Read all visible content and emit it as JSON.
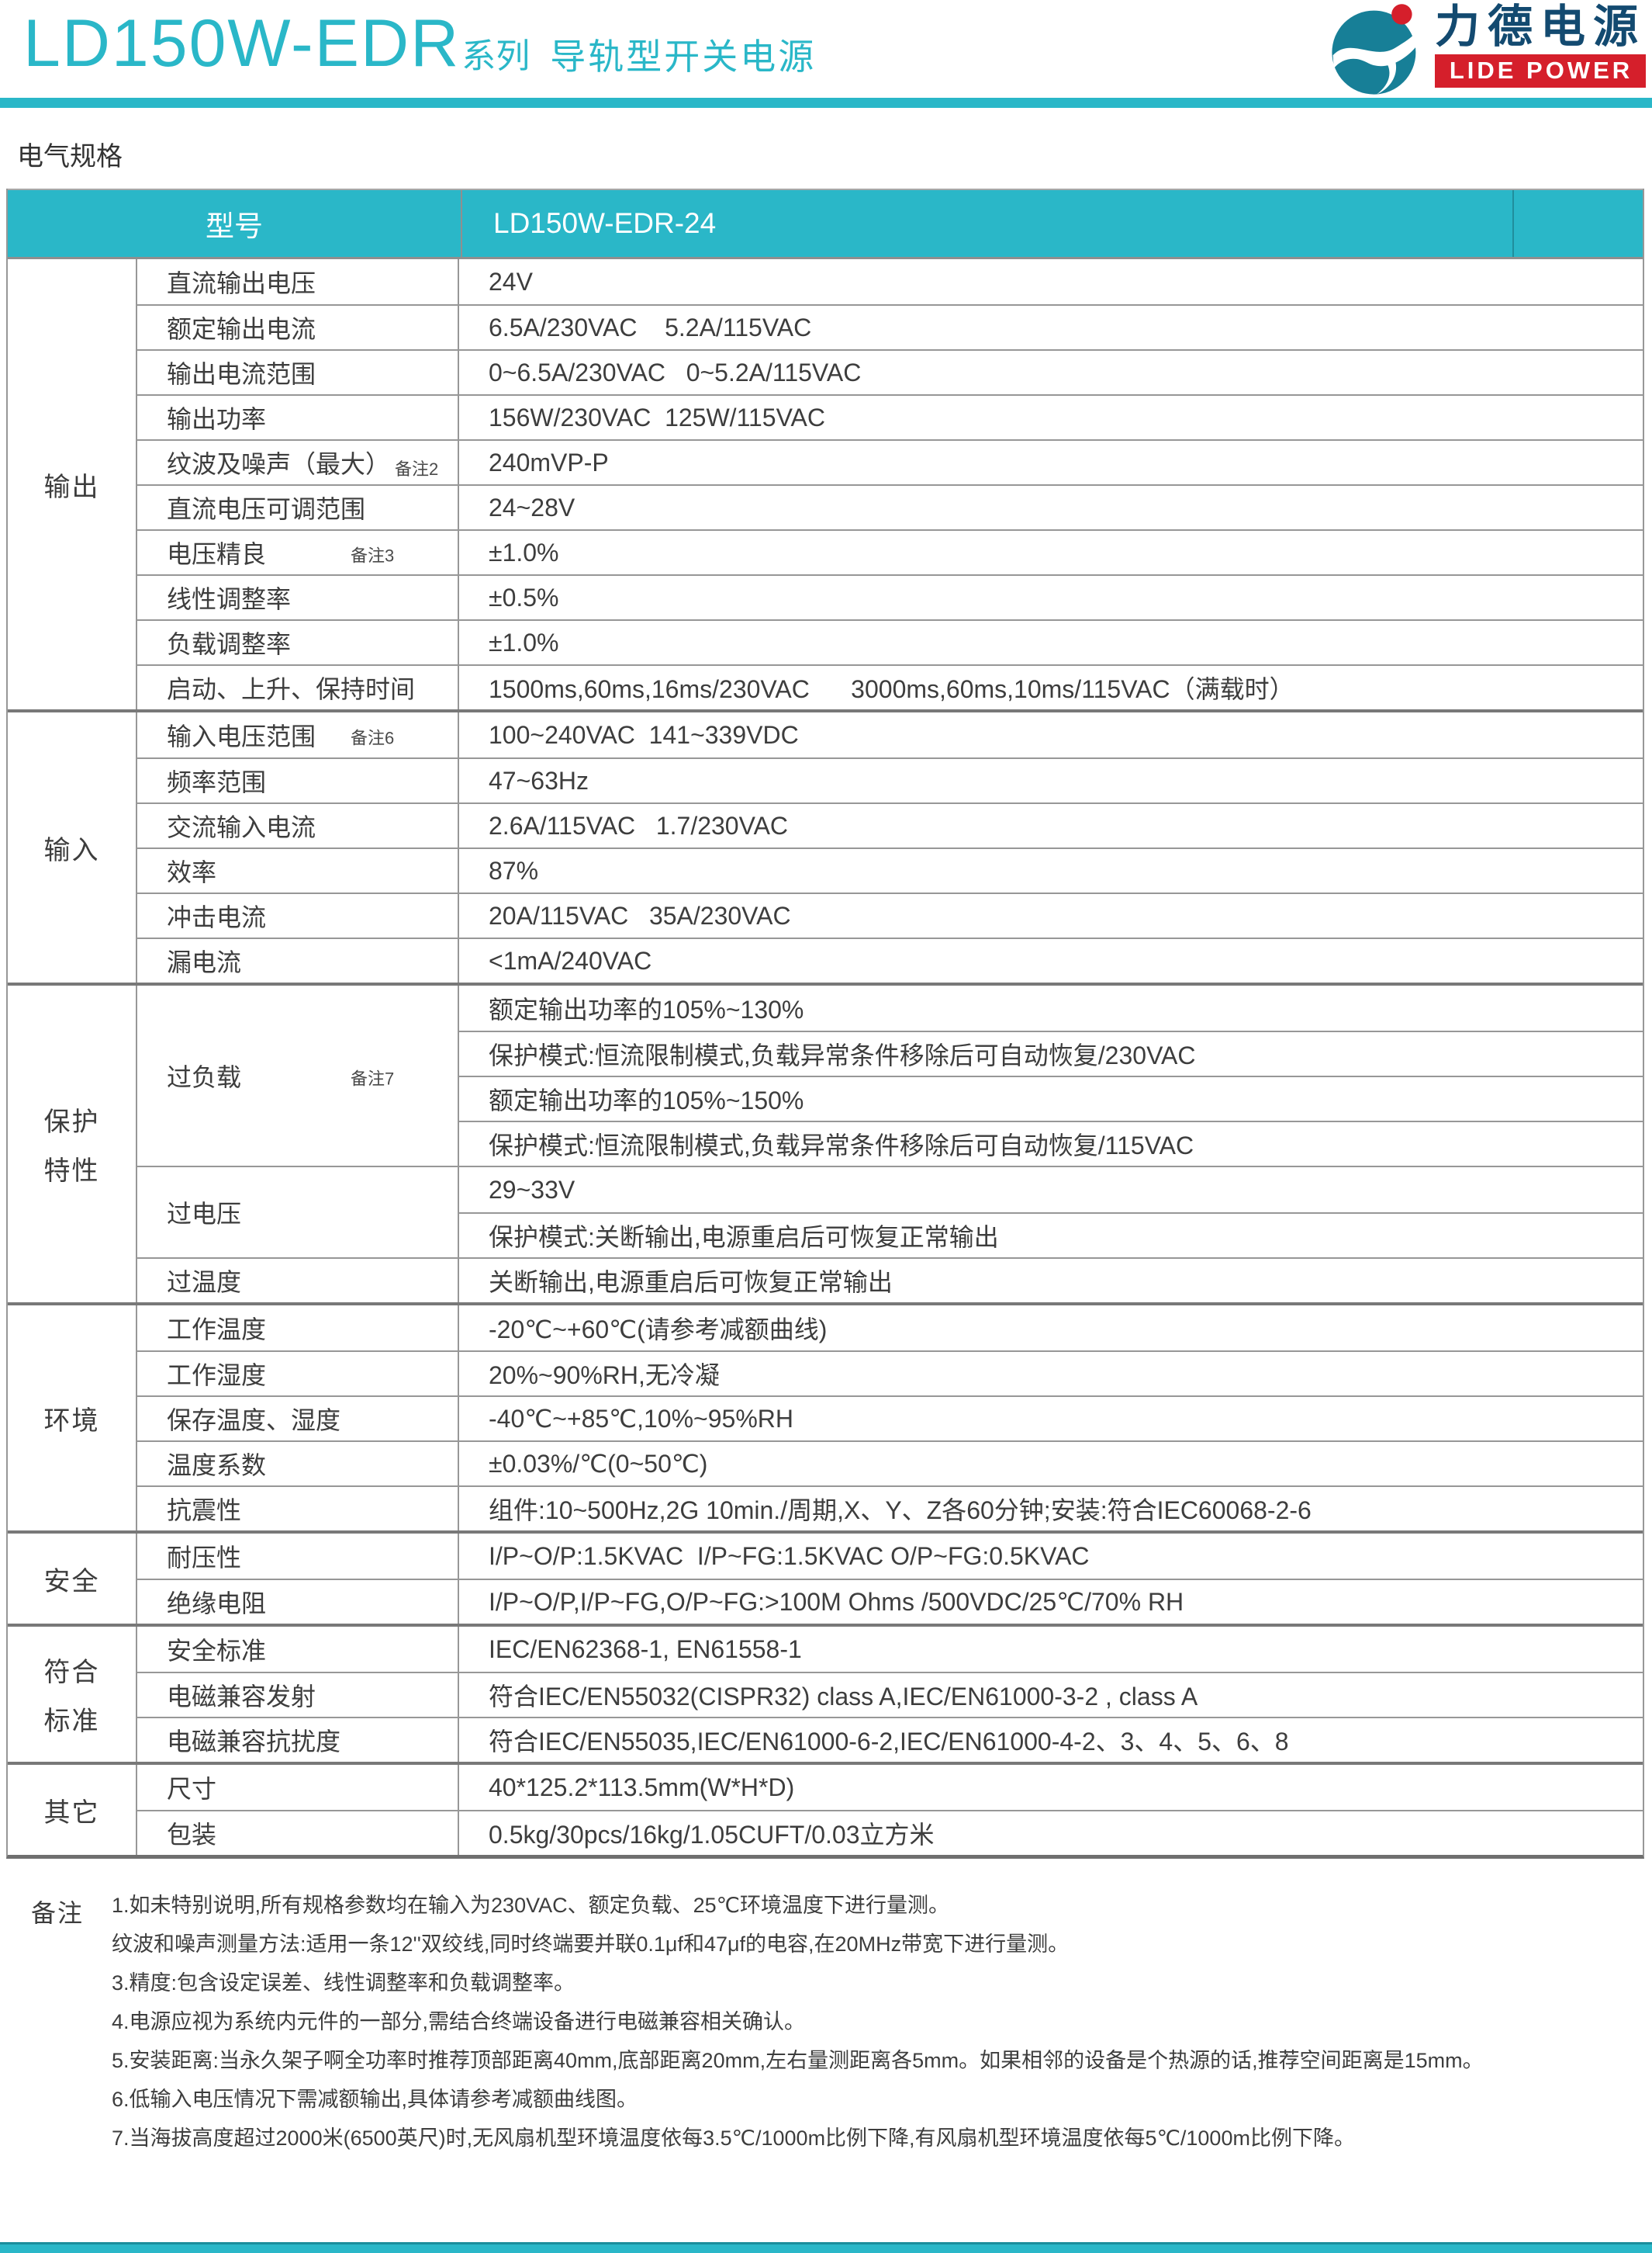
{
  "colors": {
    "accent_cyan": "#2ab7c8",
    "logo_teal": "#177f97",
    "logo_red": "#d51f2b",
    "logo_navy": "#134a70",
    "text": "#3d3d3d"
  },
  "header": {
    "series": "LD150W-EDR",
    "series_suffix": "系列",
    "subtitle": "导轨型开关电源",
    "logo_cn": "力德电源",
    "logo_en": "LIDE POWER"
  },
  "section_title": "电气规格",
  "table": {
    "header": {
      "col1": "型号",
      "col2": "LD150W-EDR-24"
    },
    "groups": [
      {
        "name": [
          "输出"
        ],
        "rows": [
          {
            "label": "直流输出电压",
            "value": "24V"
          },
          {
            "label": "额定输出电流",
            "value": "6.5A/230VAC    5.2A/115VAC"
          },
          {
            "label": "输出电流范围",
            "value": "0~6.5A/230VAC   0~5.2A/115VAC"
          },
          {
            "label": "输出功率",
            "value": "156W/230VAC  125W/115VAC"
          },
          {
            "label": "纹波及噪声（最大）",
            "note": "备注2",
            "note_inline": true,
            "value": "240mVP-P"
          },
          {
            "label": "直流电压可调范围",
            "value": "24~28V"
          },
          {
            "label": "电压精良",
            "note": "备注3",
            "value": "±1.0%"
          },
          {
            "label": "线性调整率",
            "value": "±0.5%"
          },
          {
            "label": "负载调整率",
            "value": "±1.0%"
          },
          {
            "label": "启动、上升、保持时间",
            "value": "1500ms,60ms,16ms/230VAC      3000ms,60ms,10ms/115VAC（满载时）"
          }
        ]
      },
      {
        "name": [
          "输入"
        ],
        "rows": [
          {
            "label": "输入电压范围",
            "note": "备注6",
            "value": "100~240VAC  141~339VDC"
          },
          {
            "label": "频率范围",
            "value": "47~63Hz"
          },
          {
            "label": "交流输入电流",
            "value": "2.6A/115VAC   1.7/230VAC"
          },
          {
            "label": "效率",
            "value": "87%"
          },
          {
            "label": "冲击电流",
            "value": "20A/115VAC   35A/230VAC"
          },
          {
            "label": "漏电流",
            "value": "<1mA/240VAC"
          }
        ]
      },
      {
        "name": [
          "保护",
          "特性"
        ],
        "rows": [
          {
            "label": "过负载",
            "note": "备注7",
            "values": [
              "额定输出功率的105%~130%",
              "保护模式:恒流限制模式,负载异常条件移除后可自动恢复/230VAC",
              "额定输出功率的105%~150%",
              "保护模式:恒流限制模式,负载异常条件移除后可自动恢复/115VAC"
            ]
          },
          {
            "label": "过电压",
            "values": [
              "29~33V",
              "保护模式:关断输出,电源重启后可恢复正常输出"
            ]
          },
          {
            "label": "过温度",
            "value": "关断输出,电源重启后可恢复正常输出"
          }
        ]
      },
      {
        "name": [
          "环境"
        ],
        "rows": [
          {
            "label": "工作温度",
            "value": "-20℃~+60℃(请参考减额曲线)"
          },
          {
            "label": "工作湿度",
            "value": "20%~90%RH,无冷凝"
          },
          {
            "label": "保存温度、湿度",
            "value": "-40℃~+85℃,10%~95%RH"
          },
          {
            "label": "温度系数",
            "value": "±0.03%/℃(0~50℃)"
          },
          {
            "label": "抗震性",
            "value": "组件:10~500Hz,2G 10min./周期,X、Y、Z各60分钟;安装:符合IEC60068-2-6"
          }
        ]
      },
      {
        "name": [
          "安全"
        ],
        "rows": [
          {
            "label": "耐压性",
            "value": "I/P~O/P:1.5KVAC  I/P~FG:1.5KVAC O/P~FG:0.5KVAC"
          },
          {
            "label": "绝缘电阻",
            "value": "I/P~O/P,I/P~FG,O/P~FG:>100M Ohms /500VDC/25℃/70% RH"
          }
        ]
      },
      {
        "name": [
          "符合",
          "标准"
        ],
        "rows": [
          {
            "label": "安全标准",
            "value": "IEC/EN62368-1, EN61558-1"
          },
          {
            "label": "电磁兼容发射",
            "value": "符合IEC/EN55032(CISPR32) class A,IEC/EN61000-3-2 , class A"
          },
          {
            "label": "电磁兼容抗扰度",
            "value": "符合IEC/EN55035,IEC/EN61000-6-2,IEC/EN61000-4-2、3、4、5、6、8"
          }
        ]
      },
      {
        "name": [
          "其它"
        ],
        "rows": [
          {
            "label": "尺寸",
            "value": "40*125.2*113.5mm(W*H*D)"
          },
          {
            "label": "包装",
            "value": "0.5kg/30pcs/16kg/1.05CUFT/0.03立方米"
          }
        ]
      }
    ]
  },
  "notes": {
    "label": "备注",
    "items": [
      "1.如未特别说明,所有规格参数均在输入为230VAC、额定负载、25℃环境温度下进行量测。",
      "纹波和噪声测量方法:适用一条12''双绞线,同时终端要并联0.1μf和47μf的电容,在20MHz带宽下进行量测。",
      "3.精度:包含设定误差、线性调整率和负载调整率。",
      "4.电源应视为系统内元件的一部分,需结合终端设备进行电磁兼容相关确认。",
      "5.安装距离:当永久架子啊全功率时推荐顶部距离40mm,底部距离20mm,左右量测距离各5mm。如果相邻的设备是个热源的话,推荐空间距离是15mm。",
      "6.低输入电压情况下需减额输出,具体请参考减额曲线图。",
      "7.当海拔高度超过2000米(6500英尺)时,无风扇机型环境温度依每3.5℃/1000m比例下降,有风扇机型环境温度依每5℃/1000m比例下降。"
    ]
  }
}
